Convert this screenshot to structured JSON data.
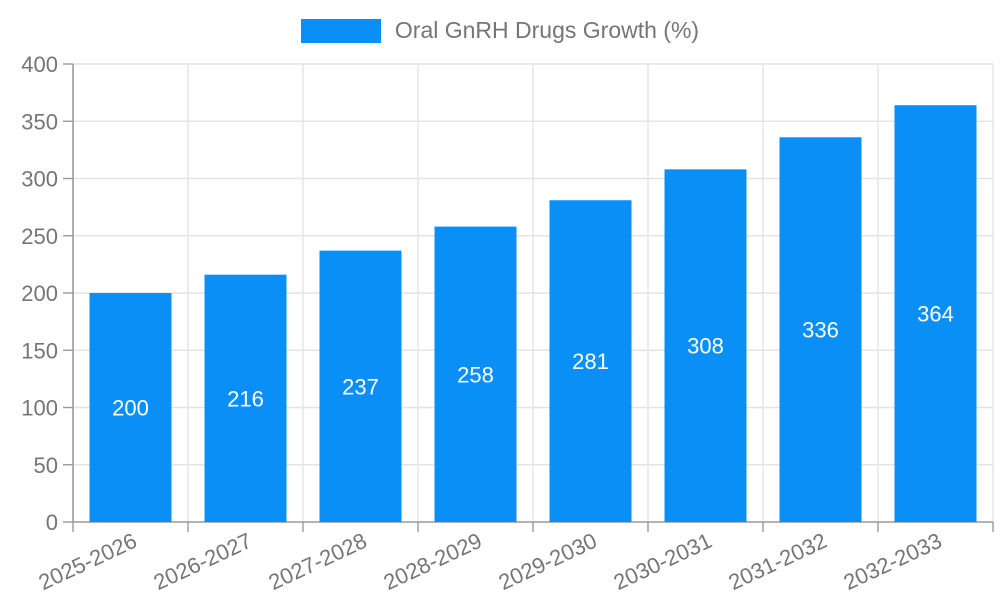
{
  "legend": {
    "label": "Oral GnRH Drugs Growth (%)"
  },
  "colors": {
    "bar": "#0a8ff7",
    "grid": "#e4e4e4",
    "axis": "#9a9a9a",
    "tick_label": "#757575",
    "value_label": "#ffffff"
  },
  "chart_data": {
    "type": "bar",
    "title": "Oral GnRH Drugs Growth (%)",
    "categories": [
      "2025-2026",
      "2026-2027",
      "2027-2028",
      "2028-2029",
      "2029-2030",
      "2030-2031",
      "2031-2032",
      "2032-2033"
    ],
    "values": [
      200,
      216,
      237,
      258,
      281,
      308,
      336,
      364
    ],
    "xlabel": "",
    "ylabel": "",
    "ylim": [
      0,
      400
    ],
    "ytick_step": 50,
    "yticks": [
      0,
      50,
      100,
      150,
      200,
      250,
      300,
      350,
      400
    ],
    "grid": true,
    "legend_position": "top",
    "value_labels": "inside-center",
    "xlabel_rotation_deg": -25
  }
}
